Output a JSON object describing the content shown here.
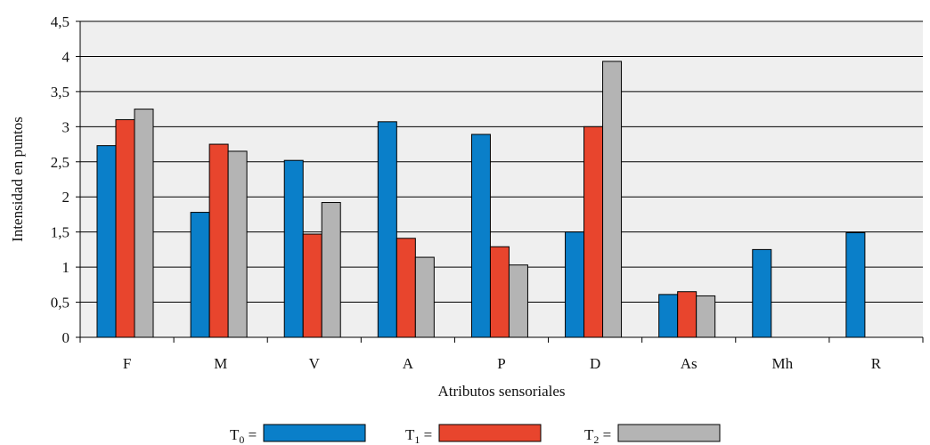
{
  "chart_data": {
    "type": "bar",
    "title": "",
    "xlabel": "Atributos sensoriales",
    "ylabel": "Intensidad en puntos",
    "ylim": [
      0,
      4.5
    ],
    "yticks": [
      "0",
      "0,5",
      "1",
      "1,5",
      "2",
      "2,5",
      "3",
      "3,5",
      "4",
      "4,5"
    ],
    "ytick_values": [
      0,
      0.5,
      1,
      1.5,
      2,
      2.5,
      3,
      3.5,
      4,
      4.5
    ],
    "categories": [
      "F",
      "M",
      "V",
      "A",
      "P",
      "D",
      "As",
      "Mh",
      "R"
    ],
    "grid": true,
    "legend_position": "bottom",
    "series": [
      {
        "name": "T0",
        "base": "T",
        "sub": "0",
        "suffix": " =",
        "color": "#0a7fc9",
        "values": [
          2.73,
          1.78,
          2.52,
          3.07,
          2.89,
          1.5,
          0.61,
          1.25,
          1.49
        ]
      },
      {
        "name": "T1",
        "base": "T",
        "sub": "1",
        "suffix": " =",
        "color": "#e8452d",
        "values": [
          3.1,
          2.75,
          1.47,
          1.41,
          1.29,
          3.0,
          0.65,
          null,
          null
        ]
      },
      {
        "name": "T2",
        "base": "T",
        "sub": "2",
        "suffix": " =",
        "color": "#b4b4b4",
        "values": [
          3.25,
          2.65,
          1.92,
          1.14,
          1.03,
          3.93,
          0.59,
          null,
          null
        ]
      }
    ],
    "colors": {
      "plot_background": "#efefef",
      "gridline": "#000000",
      "bar_outline": "#000000"
    }
  }
}
